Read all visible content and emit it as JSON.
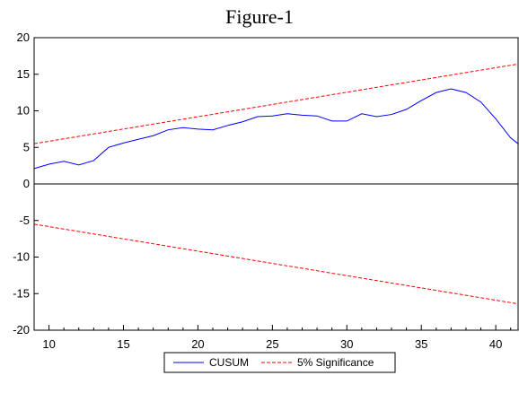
{
  "chart_data": {
    "type": "line",
    "title": "Figure-1",
    "xlabel": "",
    "ylabel": "",
    "xlim": [
      9,
      41.5
    ],
    "ylim": [
      -20,
      20
    ],
    "grid": false,
    "legend_position": "bottom-center",
    "x_ticks": [
      10,
      15,
      20,
      25,
      30,
      35,
      40
    ],
    "y_ticks": [
      20,
      15,
      10,
      5,
      0,
      -5,
      -10,
      -15,
      -20
    ],
    "zero_line": true,
    "series": [
      {
        "name": "CUSUM",
        "color": "#0000ff",
        "style": "solid",
        "x": [
          9,
          10,
          11,
          12,
          13,
          14,
          15,
          16,
          17,
          18,
          19,
          20,
          21,
          22,
          23,
          24,
          25,
          26,
          27,
          28,
          29,
          30,
          31,
          32,
          33,
          34,
          35,
          36,
          37,
          38,
          39,
          40,
          41,
          41.5
        ],
        "values": [
          2.1,
          2.7,
          3.1,
          2.6,
          3.2,
          5.0,
          5.6,
          6.1,
          6.6,
          7.4,
          7.7,
          7.5,
          7.4,
          8.0,
          8.5,
          9.2,
          9.3,
          9.6,
          9.4,
          9.3,
          8.6,
          8.6,
          9.6,
          9.2,
          9.5,
          10.2,
          11.4,
          12.5,
          13.0,
          12.5,
          11.2,
          8.9,
          6.3,
          5.5
        ]
      },
      {
        "name": "5% Significance",
        "color": "#ff0000",
        "style": "dashed",
        "x": [
          9,
          41.5
        ],
        "values": [
          5.5,
          16.4
        ]
      },
      {
        "name": "",
        "color": "#ff0000",
        "style": "dashed",
        "x": [
          9,
          41.5
        ],
        "values": [
          -5.5,
          -16.4
        ]
      }
    ]
  }
}
